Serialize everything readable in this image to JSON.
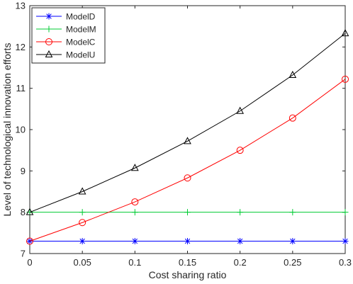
{
  "chart_data": {
    "type": "line",
    "xlabel": "Cost sharing ratio",
    "ylabel": "Level of technological innovation efforts",
    "xlim": [
      0,
      0.3
    ],
    "ylim": [
      7,
      13
    ],
    "x_ticks": [
      0,
      0.05,
      0.1,
      0.15,
      0.2,
      0.25,
      0.3
    ],
    "x_tick_labels": [
      "0",
      "0.05",
      "0.1",
      "0.15",
      "0.2",
      "0.25",
      "0.3"
    ],
    "y_ticks": [
      7,
      8,
      9,
      10,
      11,
      12,
      13
    ],
    "y_tick_labels": [
      "7",
      "8",
      "9",
      "10",
      "11",
      "12",
      "13"
    ],
    "grid": false,
    "legend_position": "top-left",
    "x": [
      0,
      0.05,
      0.1,
      0.15,
      0.2,
      0.25,
      0.3
    ],
    "series": [
      {
        "name": "ModelD",
        "color": "#0000ff",
        "marker": "asterisk",
        "values": [
          7.3,
          7.3,
          7.3,
          7.3,
          7.3,
          7.3,
          7.3
        ]
      },
      {
        "name": "ModelM",
        "color": "#00cc33",
        "marker": "plus",
        "values": [
          8.0,
          8.0,
          8.0,
          8.0,
          8.0,
          8.0,
          8.0
        ]
      },
      {
        "name": "ModelC",
        "color": "#ff0000",
        "marker": "circle",
        "values": [
          7.3,
          7.75,
          8.25,
          8.83,
          9.5,
          10.28,
          11.22
        ]
      },
      {
        "name": "ModelU",
        "color": "#000000",
        "marker": "triangle",
        "values": [
          8.0,
          8.5,
          9.07,
          9.72,
          10.45,
          11.32,
          12.33
        ]
      }
    ]
  }
}
